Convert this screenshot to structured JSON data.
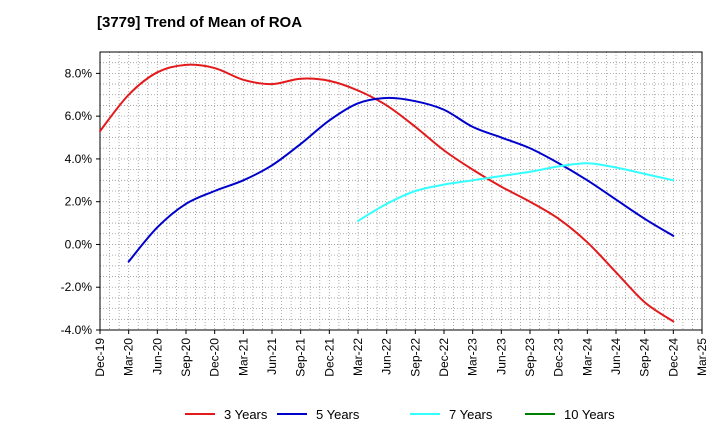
{
  "title": "[3779]  Trend of Mean of ROA",
  "chart_data": {
    "type": "line",
    "title": "[3779]  Trend of Mean of ROA",
    "xlabel": "",
    "ylabel": "",
    "x_ticks": [
      "Dec-19",
      "Mar-20",
      "Jun-20",
      "Sep-20",
      "Dec-20",
      "Mar-21",
      "Jun-21",
      "Sep-21",
      "Dec-21",
      "Mar-22",
      "Jun-22",
      "Sep-22",
      "Dec-22",
      "Mar-23",
      "Jun-23",
      "Sep-23",
      "Dec-23",
      "Mar-24",
      "Jun-24",
      "Sep-24",
      "Dec-24",
      "Mar-25"
    ],
    "y_ticks": [
      "-4.0%",
      "-2.0%",
      "0.0%",
      "2.0%",
      "4.0%",
      "6.0%",
      "8.0%"
    ],
    "ylim": [
      -4.0,
      9.0
    ],
    "grid": true,
    "legend_position": "bottom",
    "series": [
      {
        "name": "3 Years",
        "color": "#e31a1c",
        "points": [
          [
            0,
            5.3
          ],
          [
            1,
            7.0
          ],
          [
            2,
            8.05
          ],
          [
            3,
            8.4
          ],
          [
            4,
            8.25
          ],
          [
            5,
            7.7
          ],
          [
            6,
            7.5
          ],
          [
            7,
            7.75
          ],
          [
            8,
            7.65
          ],
          [
            9,
            7.2
          ],
          [
            10,
            6.5
          ],
          [
            11,
            5.5
          ],
          [
            12,
            4.4
          ],
          [
            13,
            3.5
          ],
          [
            14,
            2.7
          ],
          [
            15,
            2.0
          ],
          [
            16,
            1.2
          ],
          [
            17,
            0.1
          ],
          [
            18,
            -1.3
          ],
          [
            19,
            -2.7
          ],
          [
            20,
            -3.6
          ]
        ]
      },
      {
        "name": "5 Years",
        "color": "#0000cc",
        "points": [
          [
            1,
            -0.8
          ],
          [
            2,
            0.8
          ],
          [
            3,
            1.9
          ],
          [
            4,
            2.5
          ],
          [
            5,
            3.0
          ],
          [
            6,
            3.7
          ],
          [
            7,
            4.7
          ],
          [
            8,
            5.8
          ],
          [
            9,
            6.6
          ],
          [
            10,
            6.85
          ],
          [
            11,
            6.7
          ],
          [
            12,
            6.3
          ],
          [
            13,
            5.5
          ],
          [
            14,
            5.0
          ],
          [
            15,
            4.5
          ],
          [
            16,
            3.8
          ],
          [
            17,
            3.0
          ],
          [
            18,
            2.1
          ],
          [
            19,
            1.2
          ],
          [
            20,
            0.4
          ]
        ]
      },
      {
        "name": "7 Years",
        "color": "#33ffff",
        "points": [
          [
            9,
            1.1
          ],
          [
            10,
            1.9
          ],
          [
            11,
            2.5
          ],
          [
            12,
            2.8
          ],
          [
            13,
            3.0
          ],
          [
            14,
            3.2
          ],
          [
            15,
            3.4
          ],
          [
            16,
            3.65
          ],
          [
            17,
            3.8
          ],
          [
            18,
            3.6
          ],
          [
            19,
            3.3
          ],
          [
            20,
            3.0
          ]
        ]
      },
      {
        "name": "10 Years",
        "color": "#008000",
        "points": []
      }
    ]
  }
}
